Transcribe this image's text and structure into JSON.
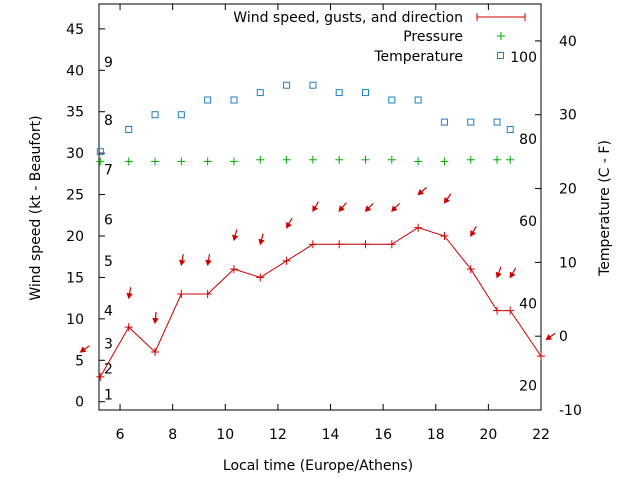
{
  "chart_data": {
    "type": "line",
    "xlabel": "Local time (Europe/Athens)",
    "ylabel_left": "Wind speed (kt - Beaufort)",
    "ylabel_right": "Temperature (C - F)",
    "xlim": [
      5.2,
      22
    ],
    "ylim_left": [
      -1,
      48
    ],
    "ylim_right": [
      -10,
      45
    ],
    "grid": false,
    "legend_position": "top-right",
    "x_ticks": [
      6,
      8,
      10,
      12,
      14,
      16,
      18,
      20,
      22
    ],
    "y_ticks_left": [
      0,
      5,
      10,
      15,
      20,
      25,
      30,
      35,
      40,
      45
    ],
    "y_ticks_right": [
      -10,
      0,
      10,
      20,
      30,
      40
    ],
    "beaufort_labels": [
      {
        "text": "1",
        "kt": 0.9
      },
      {
        "text": "2",
        "kt": 4.0
      },
      {
        "text": "3",
        "kt": 7.0
      },
      {
        "text": "4",
        "kt": 11.0
      },
      {
        "text": "5",
        "kt": 17.0
      },
      {
        "text": "6",
        "kt": 22.0
      },
      {
        "text": "7",
        "kt": 28.0
      },
      {
        "text": "8",
        "kt": 34.0
      },
      {
        "text": "9",
        "kt": 41.0
      }
    ],
    "fahrenheit_labels": [
      {
        "text": "20",
        "celsius": -6.7
      },
      {
        "text": "40",
        "celsius": 4.4
      },
      {
        "text": "60",
        "celsius": 15.6
      },
      {
        "text": "80",
        "celsius": 26.7
      },
      {
        "text": "100",
        "celsius": 37.8
      }
    ],
    "series": [
      {
        "name": "Wind speed, gusts, and direction",
        "color": "#cc0000",
        "axis": "left",
        "x": [
          5.25,
          6.33,
          7.33,
          8.33,
          9.33,
          10.33,
          11.33,
          12.33,
          13.33,
          14.33,
          15.33,
          16.33,
          17.33,
          18.33,
          19.33,
          20.33,
          20.83,
          22.0
        ],
        "y": [
          3,
          9,
          6,
          13,
          13,
          16,
          15,
          17,
          19,
          19,
          19,
          19,
          21,
          20,
          16,
          11,
          11,
          5.5
        ]
      },
      {
        "name": "Pressure",
        "color": "#00aa00",
        "axis": "left",
        "x": [
          5.25,
          6.33,
          7.33,
          8.33,
          9.33,
          10.33,
          11.33,
          12.33,
          13.33,
          14.33,
          15.33,
          16.33,
          17.33,
          18.33,
          19.33,
          20.33,
          20.83
        ],
        "y": [
          29,
          29,
          29,
          29,
          29,
          29,
          29.2,
          29.2,
          29.2,
          29.2,
          29.2,
          29.2,
          29,
          29,
          29.2,
          29.2,
          29.2
        ]
      },
      {
        "name": "Temperature",
        "color": "#1f7fbf",
        "axis": "right",
        "x": [
          5.25,
          6.33,
          7.33,
          8.33,
          9.33,
          10.33,
          11.33,
          12.33,
          13.33,
          14.33,
          15.33,
          16.33,
          17.33,
          18.33,
          19.33,
          20.33,
          20.83
        ],
        "y": [
          25,
          28,
          30,
          30,
          32,
          32,
          33,
          34,
          34,
          33,
          33,
          32,
          32,
          29,
          29,
          29,
          28
        ]
      }
    ],
    "wind_arrows": {
      "color": "#cc0000",
      "x": [
        4.5,
        6.33,
        7.33,
        8.33,
        9.33,
        10.33,
        11.33,
        12.33,
        13.33,
        14.33,
        15.33,
        16.33,
        17.33,
        18.33,
        19.33,
        20.33,
        20.83,
        22.2
      ],
      "kt": [
        6,
        12.5,
        9.5,
        16.5,
        16.5,
        19.5,
        19,
        21,
        23,
        23,
        23,
        23,
        25,
        24,
        20,
        15,
        15,
        7.5
      ],
      "angle_deg": [
        35,
        80,
        85,
        80,
        80,
        75,
        75,
        60,
        60,
        50,
        45,
        45,
        40,
        55,
        60,
        70,
        60,
        35
      ]
    }
  }
}
